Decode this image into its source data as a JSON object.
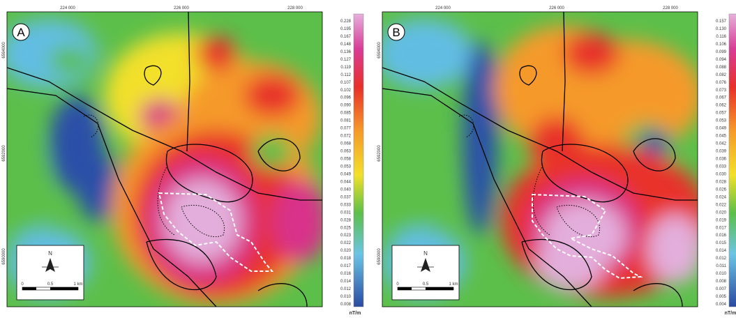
{
  "panels": [
    {
      "label": "A",
      "x_labels": [
        "224 000",
        "226 000",
        "228 000"
      ],
      "y_labels": [
        "6594000",
        "6592000",
        "6590000"
      ],
      "colorbar_labels": [
        "0.228",
        "0.195",
        "0.167",
        "0.148",
        "0.136",
        "0.127",
        "0.119",
        "0.112",
        "0.107",
        "0.102",
        "0.096",
        "0.090",
        "0.085",
        "0.081",
        "0.077",
        "0.072",
        "0.068",
        "0.063",
        "0.058",
        "0.053",
        "0.049",
        "0.044",
        "0.040",
        "0.037",
        "0.033",
        "0.031",
        "0.028",
        "0.025",
        "0.023",
        "0.022",
        "0.020",
        "0.018",
        "0.017",
        "0.016",
        "0.014",
        "0.012",
        "0.010",
        "0.008"
      ],
      "unit": "nT/m"
    },
    {
      "label": "B",
      "x_labels": [
        "224 000",
        "226 000",
        "228 000"
      ],
      "y_labels": [
        "6594000",
        "6592000",
        "6590000"
      ],
      "colorbar_labels": [
        "0.157",
        "0.130",
        "0.116",
        "0.106",
        "0.099",
        "0.094",
        "0.088",
        "0.082",
        "0.076",
        "0.073",
        "0.067",
        "0.062",
        "0.057",
        "0.053",
        "0.049",
        "0.045",
        "0.042",
        "0.039",
        "0.036",
        "0.033",
        "0.030",
        "0.028",
        "0.026",
        "0.024",
        "0.022",
        "0.020",
        "0.019",
        "0.017",
        "0.016",
        "0.015",
        "0.014",
        "0.012",
        "0.011",
        "0.010",
        "0.008",
        "0.007",
        "0.005",
        "0.004"
      ],
      "unit": "nT/m"
    }
  ],
  "scale": {
    "north": "N",
    "labels": [
      "0",
      "0.5",
      "1 km"
    ]
  }
}
